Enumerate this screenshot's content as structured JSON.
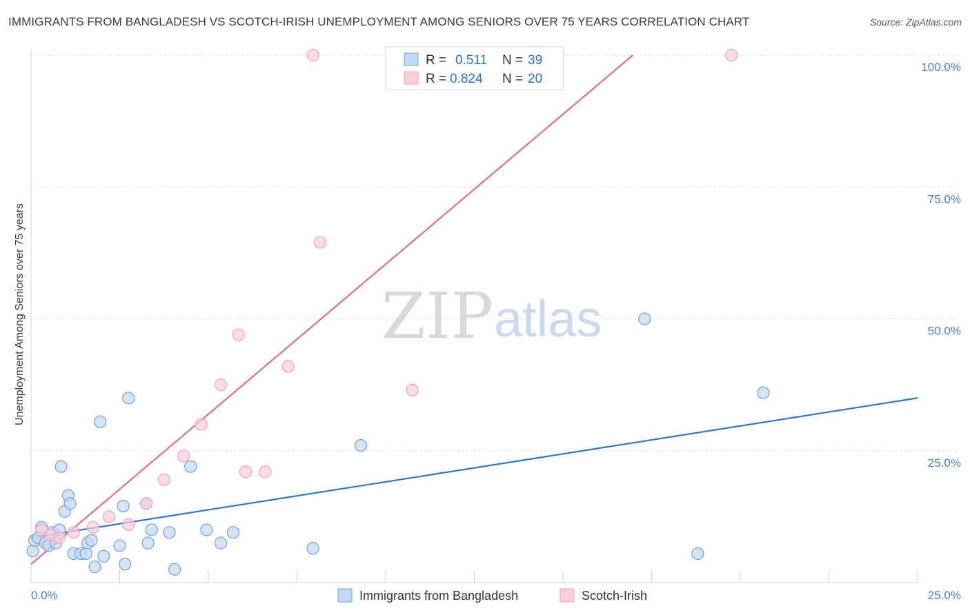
{
  "title": "IMMIGRANTS FROM BANGLADESH VS SCOTCH-IRISH UNEMPLOYMENT AMONG SENIORS OVER 75 YEARS CORRELATION CHART",
  "source": "Source: ZipAtlas.com",
  "watermark": {
    "zip": "ZIP",
    "atlas": "atlas"
  },
  "legend_top": {
    "rows": [
      {
        "r_label": "R =",
        "r_value": "0.511",
        "n_label": "N =",
        "n_value": "39"
      },
      {
        "r_label": "R =",
        "r_value": "0.824",
        "n_label": "N =",
        "n_value": "20"
      }
    ]
  },
  "chart_data": {
    "type": "scatter",
    "title": "IMMIGRANTS FROM BANGLADESH VS SCOTCH-IRISH UNEMPLOYMENT AMONG SENIORS OVER 75 YEARS CORRELATION CHART",
    "xlabel": "",
    "ylabel": "Unemployment Among Seniors over 75 years",
    "xlim": [
      0,
      25
    ],
    "ylim": [
      0,
      100
    ],
    "x_tick_labels": [
      "0.0%",
      "25.0%"
    ],
    "y_tick_labels": [
      "25.0%",
      "50.0%",
      "75.0%",
      "100.0%"
    ],
    "y_tick_values": [
      25,
      50,
      75,
      100
    ],
    "series": [
      {
        "name": "Immigrants from Bangladesh",
        "color": "#6f9fdc",
        "fill": "#c4d8f3",
        "line_color": "#2f74d0",
        "trend": {
          "x0": 0,
          "y0": 8.5,
          "x1": 25,
          "y1": 35
        },
        "points": [
          [
            0.05,
            6.0
          ],
          [
            0.1,
            8.0
          ],
          [
            0.2,
            8.5
          ],
          [
            0.3,
            10.5
          ],
          [
            0.4,
            7.5
          ],
          [
            0.5,
            7.0
          ],
          [
            0.6,
            9.5
          ],
          [
            0.7,
            7.5
          ],
          [
            0.8,
            10.0
          ],
          [
            0.85,
            22.0
          ],
          [
            0.95,
            13.5
          ],
          [
            1.05,
            16.5
          ],
          [
            1.1,
            15.0
          ],
          [
            1.2,
            5.5
          ],
          [
            1.4,
            5.5
          ],
          [
            1.55,
            5.5
          ],
          [
            1.6,
            7.5
          ],
          [
            1.7,
            8.0
          ],
          [
            1.8,
            3.0
          ],
          [
            1.95,
            30.5
          ],
          [
            2.05,
            5.0
          ],
          [
            2.5,
            7.0
          ],
          [
            2.6,
            14.5
          ],
          [
            2.65,
            3.5
          ],
          [
            2.75,
            35.0
          ],
          [
            3.3,
            7.5
          ],
          [
            3.25,
            15.0
          ],
          [
            3.4,
            10.0
          ],
          [
            3.9,
            9.5
          ],
          [
            4.05,
            2.5
          ],
          [
            4.5,
            22.0
          ],
          [
            4.95,
            10.0
          ],
          [
            5.35,
            7.5
          ],
          [
            5.7,
            9.5
          ],
          [
            7.95,
            6.5
          ],
          [
            9.3,
            26.0
          ],
          [
            17.3,
            50.0
          ],
          [
            18.8,
            5.5
          ],
          [
            20.65,
            36.0
          ]
        ]
      },
      {
        "name": "Scotch-Irish",
        "color": "#f0a0bc",
        "fill": "#f8cedc",
        "line_color": "#e06a94",
        "trend": {
          "x0": 0,
          "y0": 3.5,
          "x1": 16.97,
          "y1": 100
        },
        "points": [
          [
            0.3,
            10.0
          ],
          [
            0.55,
            9.0
          ],
          [
            0.8,
            8.5
          ],
          [
            1.2,
            9.5
          ],
          [
            1.75,
            10.5
          ],
          [
            2.2,
            12.5
          ],
          [
            2.75,
            11.0
          ],
          [
            3.25,
            15.0
          ],
          [
            3.75,
            19.5
          ],
          [
            4.3,
            24.0
          ],
          [
            4.8,
            30.0
          ],
          [
            5.35,
            37.5
          ],
          [
            5.85,
            47.0
          ],
          [
            6.05,
            21.0
          ],
          [
            6.6,
            21.0
          ],
          [
            7.25,
            41.0
          ],
          [
            7.95,
            100.0
          ],
          [
            8.15,
            64.5
          ],
          [
            10.75,
            36.5
          ],
          [
            19.75,
            100.0
          ]
        ]
      }
    ]
  }
}
